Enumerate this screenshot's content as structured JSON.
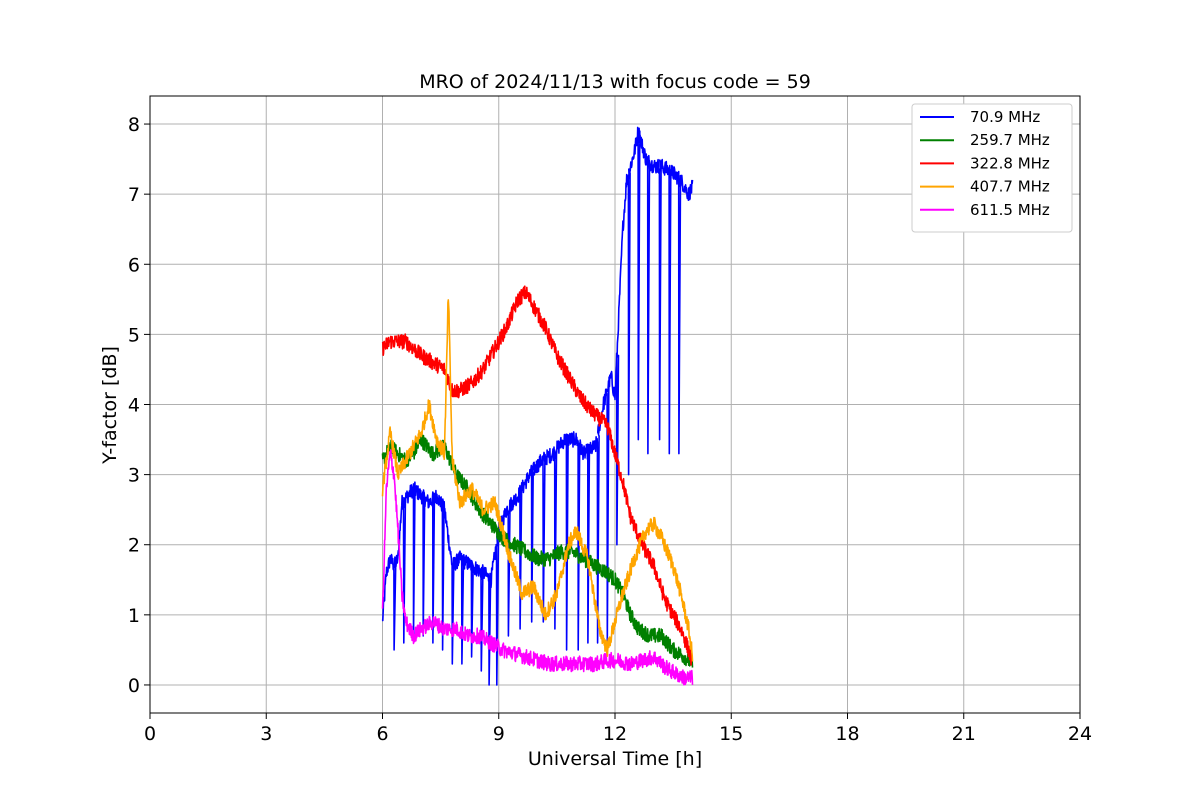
{
  "chart_data": {
    "type": "line",
    "title": "MRO of 2024/11/13 with focus code = 59",
    "xlabel": "Universal Time [h]",
    "ylabel": "Y-factor [dB]",
    "xlim": [
      0,
      24
    ],
    "ylim": [
      -0.4,
      8.4
    ],
    "xticks": [
      0,
      3,
      6,
      9,
      12,
      15,
      18,
      21,
      24
    ],
    "yticks": [
      0,
      1,
      2,
      3,
      4,
      5,
      6,
      7,
      8
    ],
    "grid": true,
    "legend_position": "top-right",
    "series": [
      {
        "name": "70.9 MHz",
        "color": "#0000ff",
        "x": [
          6.0,
          6.1,
          6.2,
          6.3,
          6.4,
          6.5,
          6.8,
          7.0,
          7.2,
          7.4,
          7.6,
          7.8,
          8.0,
          8.3,
          8.6,
          8.8,
          9.0,
          9.2,
          9.5,
          9.8,
          10.1,
          10.4,
          10.7,
          11.0,
          11.2,
          11.5,
          11.7,
          11.9,
          12.0,
          12.2,
          12.3,
          12.5,
          12.6,
          12.8,
          13.0,
          13.2,
          13.5,
          13.7,
          13.9,
          14.0
        ],
        "y": [
          0.9,
          1.6,
          1.8,
          1.7,
          1.8,
          2.6,
          2.8,
          2.7,
          2.6,
          2.7,
          2.5,
          1.7,
          1.8,
          1.7,
          1.6,
          1.5,
          2.2,
          2.5,
          2.7,
          3.0,
          3.2,
          3.3,
          3.5,
          3.5,
          3.3,
          3.4,
          4.0,
          4.4,
          4.1,
          6.5,
          7.2,
          7.6,
          7.9,
          7.5,
          7.4,
          7.4,
          7.3,
          7.2,
          7.0,
          7.1
        ],
        "dips": [
          6.3,
          6.55,
          6.8,
          7.05,
          7.3,
          7.55,
          7.8,
          8.05,
          8.3,
          8.55,
          8.75,
          8.95,
          9.25,
          9.55,
          9.85,
          10.15,
          10.45,
          10.75,
          11.05,
          11.3,
          11.55,
          11.8,
          12.05,
          12.35,
          12.6,
          12.85,
          13.15,
          13.4,
          13.65
        ],
        "dip_y": [
          0.5,
          0.6,
          0.7,
          0.7,
          0.6,
          0.5,
          0.3,
          0.3,
          0.4,
          0.2,
          0.0,
          0.0,
          0.7,
          0.8,
          0.9,
          0.9,
          0.8,
          0.5,
          0.5,
          0.6,
          0.6,
          0.6,
          2.0,
          3.0,
          3.5,
          3.3,
          3.5,
          3.3,
          3.3
        ]
      },
      {
        "name": "259.7 MHz",
        "color": "#008000",
        "x": [
          6.0,
          6.2,
          6.4,
          6.6,
          6.8,
          7.0,
          7.3,
          7.6,
          7.9,
          8.2,
          8.5,
          8.8,
          9.1,
          9.4,
          9.7,
          10.0,
          10.3,
          10.6,
          10.9,
          11.2,
          11.5,
          11.8,
          12.0,
          12.2,
          12.4,
          12.6,
          12.9,
          13.2,
          13.5,
          13.8,
          14.0
        ],
        "y": [
          3.2,
          3.4,
          3.3,
          3.2,
          3.3,
          3.5,
          3.3,
          3.4,
          3.0,
          2.8,
          2.5,
          2.3,
          2.1,
          2.0,
          1.9,
          1.8,
          1.8,
          1.9,
          1.9,
          1.8,
          1.7,
          1.6,
          1.5,
          1.3,
          1.0,
          0.8,
          0.7,
          0.7,
          0.5,
          0.4,
          0.3
        ]
      },
      {
        "name": "322.8 MHz",
        "color": "#ff0000",
        "x": [
          6.0,
          6.2,
          6.4,
          6.6,
          6.8,
          7.0,
          7.3,
          7.6,
          7.8,
          8.0,
          8.3,
          8.6,
          8.9,
          9.2,
          9.5,
          9.7,
          9.9,
          10.2,
          10.5,
          10.8,
          11.1,
          11.4,
          11.6,
          11.8,
          12.0,
          12.2,
          12.4,
          12.7,
          13.0,
          13.3,
          13.5,
          13.7,
          13.9,
          14.0
        ],
        "y": [
          4.8,
          4.9,
          4.9,
          4.9,
          4.8,
          4.7,
          4.6,
          4.5,
          4.2,
          4.2,
          4.3,
          4.5,
          4.8,
          5.1,
          5.5,
          5.6,
          5.4,
          5.1,
          4.7,
          4.4,
          4.1,
          3.9,
          3.8,
          3.7,
          3.3,
          2.9,
          2.4,
          2.0,
          1.7,
          1.2,
          1.0,
          0.8,
          0.5,
          0.3
        ]
      },
      {
        "name": "407.7 MHz",
        "color": "#ffa500",
        "x": [
          6.0,
          6.2,
          6.4,
          6.6,
          6.8,
          7.0,
          7.2,
          7.4,
          7.6,
          7.7,
          7.8,
          8.0,
          8.3,
          8.6,
          8.9,
          9.1,
          9.3,
          9.6,
          9.9,
          10.2,
          10.5,
          10.8,
          11.0,
          11.3,
          11.6,
          11.8,
          12.0,
          12.2,
          12.5,
          12.8,
          13.0,
          13.2,
          13.5,
          13.7,
          13.9,
          14.0
        ],
        "y": [
          2.8,
          3.6,
          3.0,
          3.2,
          3.4,
          3.6,
          4.0,
          3.5,
          3.3,
          5.6,
          3.2,
          2.6,
          2.8,
          2.5,
          2.6,
          2.2,
          1.8,
          1.3,
          1.4,
          1.0,
          1.3,
          2.0,
          2.2,
          1.8,
          0.8,
          0.5,
          0.9,
          1.3,
          1.8,
          2.2,
          2.3,
          2.1,
          1.7,
          1.3,
          0.8,
          0.4
        ]
      },
      {
        "name": "611.5 MHz",
        "color": "#ff00ff",
        "x": [
          6.0,
          6.1,
          6.2,
          6.3,
          6.4,
          6.5,
          6.6,
          6.8,
          7.0,
          7.3,
          7.6,
          7.9,
          8.2,
          8.5,
          8.8,
          9.1,
          9.4,
          9.7,
          10.0,
          10.3,
          10.6,
          10.9,
          11.2,
          11.5,
          11.8,
          12.1,
          12.4,
          12.7,
          13.0,
          13.3,
          13.6,
          13.8,
          14.0
        ],
        "y": [
          1.0,
          2.8,
          3.3,
          3.0,
          2.2,
          1.3,
          0.9,
          0.7,
          0.8,
          0.9,
          0.8,
          0.8,
          0.7,
          0.7,
          0.6,
          0.5,
          0.45,
          0.4,
          0.35,
          0.3,
          0.3,
          0.3,
          0.3,
          0.3,
          0.35,
          0.35,
          0.3,
          0.35,
          0.4,
          0.25,
          0.15,
          0.1,
          0.1
        ]
      }
    ]
  }
}
